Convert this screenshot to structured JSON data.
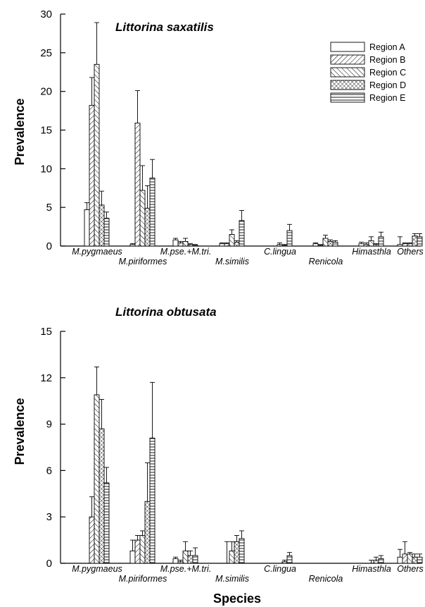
{
  "x_axis_title": "Species",
  "chart_data": [
    {
      "type": "bar",
      "title": "Littorina saxatilis",
      "xlabel": "",
      "ylabel": "Prevalence",
      "ylim": [
        0,
        30
      ],
      "yticks": [
        0,
        5,
        10,
        15,
        20,
        25,
        30
      ],
      "grid": false,
      "legend_position": "top-right",
      "categories": [
        "M.pygmaeus",
        "M.piriformes",
        "M.pse.+M.tri.",
        "M.similis",
        "C.lingua",
        "Renicola",
        "Himasthla",
        "Others"
      ],
      "series": [
        {
          "name": "Region A",
          "pattern": "blank",
          "values": [
            4.7,
            0.2,
            0.8,
            0.3,
            0.0,
            0.3,
            0.3,
            0.2
          ],
          "errors": [
            0.9,
            0.1,
            0.2,
            0.1,
            0.0,
            0.1,
            0.2,
            1.0
          ]
        },
        {
          "name": "Region B",
          "pattern": "diag-right",
          "values": [
            18.2,
            15.9,
            0.4,
            0.3,
            0.0,
            0.1,
            0.2,
            0.3
          ],
          "errors": [
            3.6,
            4.2,
            0.2,
            0.1,
            0.0,
            0.1,
            0.2,
            0.1
          ]
        },
        {
          "name": "Region C",
          "pattern": "diag-left",
          "values": [
            23.5,
            7.2,
            0.6,
            1.5,
            0.2,
            1.0,
            0.7,
            0.3
          ],
          "errors": [
            5.4,
            3.2,
            0.4,
            0.6,
            0.2,
            0.4,
            0.5,
            0.1
          ]
        },
        {
          "name": "Region D",
          "pattern": "crosshatch",
          "values": [
            5.3,
            4.9,
            0.2,
            0.5,
            0.1,
            0.6,
            0.2,
            1.3
          ],
          "errors": [
            1.8,
            2.9,
            0.1,
            0.2,
            0.1,
            0.2,
            0.1,
            0.3
          ]
        },
        {
          "name": "Region E",
          "pattern": "horizontal",
          "values": [
            3.6,
            8.8,
            0.1,
            3.3,
            2.0,
            0.5,
            1.2,
            1.2
          ],
          "errors": [
            0.8,
            2.4,
            0.1,
            1.3,
            0.8,
            0.2,
            0.6,
            0.4
          ]
        }
      ]
    },
    {
      "type": "bar",
      "title": "Littorina obtusata",
      "xlabel": "Species",
      "ylabel": "Prevalence",
      "ylim": [
        0,
        15
      ],
      "yticks": [
        0,
        3,
        6,
        9,
        12,
        15
      ],
      "grid": false,
      "legend_position": "none",
      "categories": [
        "M.pygmaeus",
        "M.piriformes",
        "M.pse.+M.tri.",
        "M.similis",
        "C.lingua",
        "Renicola",
        "Himasthla",
        "Others"
      ],
      "series": [
        {
          "name": "Region A",
          "pattern": "blank",
          "values": [
            0.0,
            0.8,
            0.3,
            0.0,
            0.0,
            0.0,
            0.0,
            0.4
          ],
          "errors": [
            0.0,
            0.7,
            0.1,
            0.0,
            0.0,
            0.0,
            0.0,
            0.5
          ]
        },
        {
          "name": "Region B",
          "pattern": "diag-right",
          "values": [
            3.0,
            1.5,
            0.1,
            0.0,
            0.0,
            0.0,
            0.0,
            0.6
          ],
          "errors": [
            1.3,
            0.3,
            0.1,
            1.4,
            0.0,
            0.0,
            0.0,
            0.8
          ]
        },
        {
          "name": "Region C",
          "pattern": "diag-left",
          "values": [
            10.9,
            1.8,
            0.8,
            0.8,
            0.0,
            0.0,
            0.0,
            0.6
          ],
          "errors": [
            1.8,
            0.3,
            0.6,
            0.6,
            0.0,
            0.0,
            0.2,
            0.1
          ]
        },
        {
          "name": "Region D",
          "pattern": "crosshatch",
          "values": [
            8.7,
            4.0,
            0.5,
            1.4,
            0.1,
            0.0,
            0.2,
            0.4
          ],
          "errors": [
            1.9,
            2.5,
            0.3,
            0.4,
            0.1,
            0.0,
            0.2,
            0.2
          ]
        },
        {
          "name": "Region E",
          "pattern": "horizontal",
          "values": [
            5.2,
            8.1,
            0.5,
            1.6,
            0.5,
            0.0,
            0.3,
            0.4
          ],
          "errors": [
            1.0,
            3.6,
            0.5,
            0.5,
            0.2,
            0.0,
            0.2,
            0.2
          ]
        }
      ]
    }
  ]
}
